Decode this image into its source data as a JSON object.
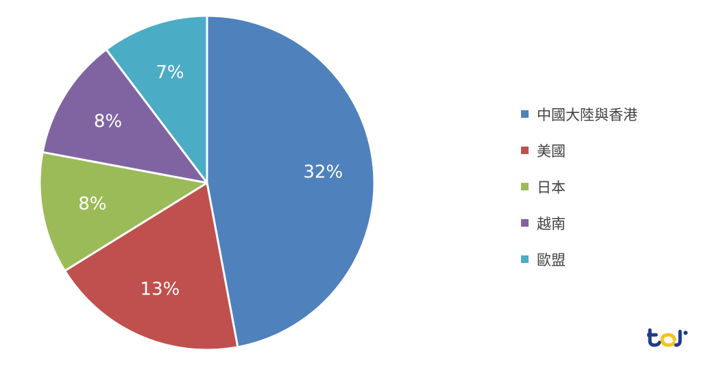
{
  "chart_data": {
    "type": "pie",
    "categories": [
      "中國大陸與香港",
      "美國",
      "日本",
      "越南",
      "歐盟"
    ],
    "values": [
      32,
      13,
      8,
      8,
      7
    ],
    "labels": [
      "32%",
      "13%",
      "8%",
      "8%",
      "7%"
    ],
    "colors": [
      "#4f81bd",
      "#c0504d",
      "#9bbb59",
      "#8064a2",
      "#4bacc6"
    ],
    "start": "12 o'clock",
    "direction": "clockwise",
    "legend_position": "right"
  },
  "logo": {
    "icon": "tej-logo-icon",
    "colors": [
      "#1e3a8a",
      "#f5c518"
    ]
  }
}
